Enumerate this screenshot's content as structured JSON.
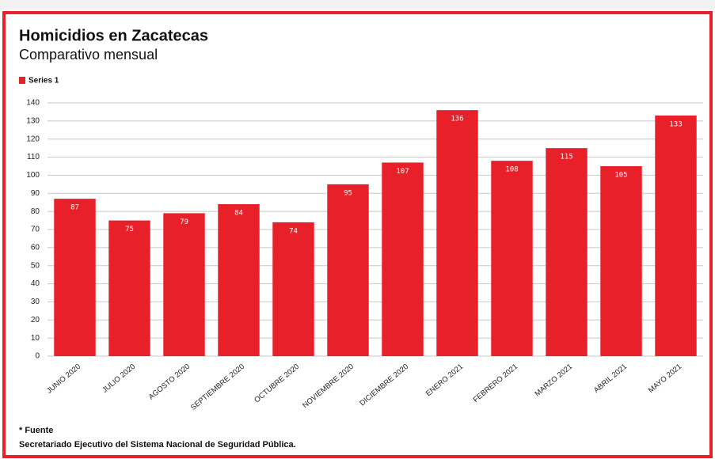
{
  "chart_data": {
    "type": "bar",
    "title": "Homicidios en Zacatecas",
    "subtitle": "Comparativo mensual",
    "legend": "Series 1",
    "categories": [
      "JUNIO 2020",
      "JULIO 2020",
      "AGOSTO 2020",
      "SEPTIEMBRE 2020",
      "OCTUBRE 2020",
      "NOVIEMBRE 2020",
      "DICIEMBRE 2020",
      "ENERO 2021",
      "FEBRERO 2021",
      "MARZO 2021",
      "ABRIL 2021",
      "MAYO 2021"
    ],
    "values": [
      87,
      75,
      79,
      84,
      74,
      95,
      107,
      136,
      108,
      115,
      105,
      133
    ],
    "color": "#e8202a",
    "ylim": [
      0,
      140
    ],
    "yticks": [
      0,
      10,
      20,
      30,
      40,
      50,
      60,
      70,
      80,
      90,
      100,
      110,
      120,
      130,
      140
    ],
    "grid": true,
    "source_label": "* Fuente",
    "source": "Secretariado Ejecutivo del Sistema Nacional de Seguridad Pública."
  }
}
